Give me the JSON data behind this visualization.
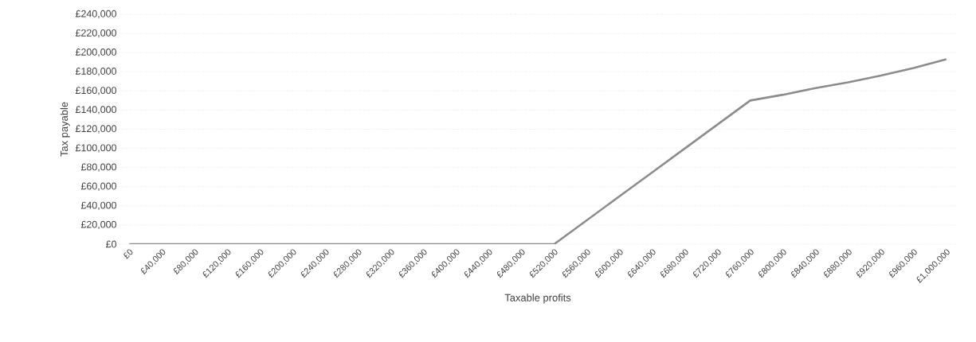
{
  "chart_data": {
    "type": "line",
    "xlabel": "Taxable profits",
    "ylabel": "Tax payable",
    "categories": [
      "£0",
      "£40,000",
      "£80,000",
      "£120,000",
      "£160,000",
      "£200,000",
      "£240,000",
      "£280,000",
      "£320,000",
      "£360,000",
      "£400,000",
      "£440,000",
      "£480,000",
      "£520,000",
      "£560,000",
      "£600,000",
      "£640,000",
      "£680,000",
      "£720,000",
      "£760,000",
      "£800,000",
      "£840,000",
      "£880,000",
      "£920,000",
      "£960,000",
      "£1,000,000"
    ],
    "series": [
      {
        "color": "#8c8c8c",
        "values": [
          0,
          0,
          0,
          0,
          0,
          0,
          0,
          0,
          0,
          0,
          0,
          0,
          0,
          0,
          25000,
          50000,
          75000,
          100000,
          125000,
          150000,
          156000,
          163000,
          169000,
          176000,
          184000,
          193000
        ]
      }
    ],
    "ylim": [
      0,
      240000
    ],
    "yticks": [
      {
        "value": 0,
        "label": "£0"
      },
      {
        "value": 20000,
        "label": "£20,000"
      },
      {
        "value": 40000,
        "label": "£40,000"
      },
      {
        "value": 60000,
        "label": "£60,000"
      },
      {
        "value": 80000,
        "label": "£80,000"
      },
      {
        "value": 100000,
        "label": "£100,000"
      },
      {
        "value": 120000,
        "label": "£120,000"
      },
      {
        "value": 140000,
        "label": "£140,000"
      },
      {
        "value": 160000,
        "label": "£160,000"
      },
      {
        "value": 180000,
        "label": "£180,000"
      },
      {
        "value": 200000,
        "label": "£200,000"
      },
      {
        "value": 220000,
        "label": "£220,000"
      },
      {
        "value": 240000,
        "label": "£240,000"
      }
    ],
    "grid": "y",
    "marker": "none",
    "line_style": "solid"
  }
}
